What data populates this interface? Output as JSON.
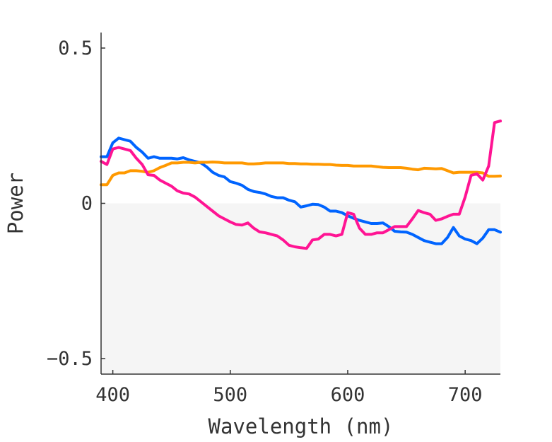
{
  "chart_data": {
    "type": "line",
    "title": "",
    "xlabel": "Wavelength (nm)",
    "ylabel": "Power",
    "xlim": [
      390,
      730
    ],
    "ylim": [
      -0.55,
      0.55
    ],
    "x_ticks": [
      400,
      500,
      600,
      700
    ],
    "x_tick_labels": [
      "400",
      "500",
      "600",
      "700"
    ],
    "y_ticks": [
      -0.5,
      0,
      0.5
    ],
    "y_tick_labels": [
      "−0.5",
      "0",
      "0.5"
    ],
    "grid": false,
    "legend": "none",
    "negative_region_fill": "#f5f5f5",
    "x": [
      390,
      395,
      400,
      405,
      410,
      415,
      420,
      425,
      430,
      435,
      440,
      445,
      450,
      455,
      460,
      465,
      470,
      475,
      480,
      485,
      490,
      495,
      500,
      505,
      510,
      515,
      520,
      525,
      530,
      535,
      540,
      545,
      550,
      555,
      560,
      565,
      570,
      575,
      580,
      585,
      590,
      595,
      600,
      605,
      610,
      615,
      620,
      625,
      630,
      635,
      640,
      645,
      650,
      655,
      660,
      665,
      670,
      675,
      680,
      685,
      690,
      695,
      700,
      705,
      710,
      715,
      720,
      725,
      730
    ],
    "series": [
      {
        "color": "#0064ff",
        "values": [
          0.15,
          0.15,
          0.195,
          0.21,
          0.205,
          0.2,
          0.18,
          0.165,
          0.145,
          0.15,
          0.145,
          0.145,
          0.145,
          0.143,
          0.147,
          0.14,
          0.135,
          0.13,
          0.117,
          0.1,
          0.09,
          0.085,
          0.07,
          0.065,
          0.058,
          0.045,
          0.038,
          0.035,
          0.03,
          0.022,
          0.018,
          0.018,
          0.01,
          0.005,
          -0.012,
          -0.008,
          -0.003,
          -0.004,
          -0.012,
          -0.025,
          -0.025,
          -0.03,
          -0.04,
          -0.048,
          -0.055,
          -0.06,
          -0.065,
          -0.065,
          -0.063,
          -0.075,
          -0.09,
          -0.092,
          -0.093,
          -0.1,
          -0.11,
          -0.12,
          -0.125,
          -0.13,
          -0.13,
          -0.11,
          -0.078,
          -0.105,
          -0.115,
          -0.12,
          -0.13,
          -0.112,
          -0.085,
          -0.085,
          -0.093
        ]
      },
      {
        "color": "#ff9900",
        "values": [
          0.06,
          0.06,
          0.09,
          0.098,
          0.098,
          0.105,
          0.105,
          0.103,
          0.1,
          0.105,
          0.115,
          0.122,
          0.13,
          0.13,
          0.132,
          0.132,
          0.13,
          0.132,
          0.132,
          0.133,
          0.132,
          0.13,
          0.13,
          0.13,
          0.13,
          0.127,
          0.127,
          0.128,
          0.13,
          0.13,
          0.13,
          0.13,
          0.128,
          0.128,
          0.127,
          0.127,
          0.126,
          0.126,
          0.125,
          0.125,
          0.123,
          0.122,
          0.122,
          0.12,
          0.12,
          0.12,
          0.12,
          0.118,
          0.116,
          0.115,
          0.115,
          0.115,
          0.113,
          0.11,
          0.108,
          0.113,
          0.112,
          0.111,
          0.112,
          0.105,
          0.098,
          0.1,
          0.1,
          0.1,
          0.1,
          0.098,
          0.087,
          0.087,
          0.088
        ]
      },
      {
        "color": "#ff1493",
        "values": [
          0.135,
          0.125,
          0.175,
          0.18,
          0.175,
          0.17,
          0.145,
          0.125,
          0.092,
          0.09,
          0.075,
          0.065,
          0.055,
          0.04,
          0.033,
          0.03,
          0.02,
          0.005,
          -0.01,
          -0.025,
          -0.04,
          -0.05,
          -0.06,
          -0.068,
          -0.07,
          -0.063,
          -0.08,
          -0.092,
          -0.095,
          -0.1,
          -0.105,
          -0.118,
          -0.135,
          -0.14,
          -0.143,
          -0.145,
          -0.118,
          -0.115,
          -0.1,
          -0.1,
          -0.105,
          -0.1,
          -0.03,
          -0.035,
          -0.08,
          -0.1,
          -0.1,
          -0.095,
          -0.095,
          -0.085,
          -0.075,
          -0.075,
          -0.075,
          -0.05,
          -0.023,
          -0.03,
          -0.035,
          -0.055,
          -0.05,
          -0.042,
          -0.035,
          -0.035,
          0.02,
          0.09,
          0.095,
          0.075,
          0.12,
          0.26,
          0.265
        ]
      }
    ]
  }
}
